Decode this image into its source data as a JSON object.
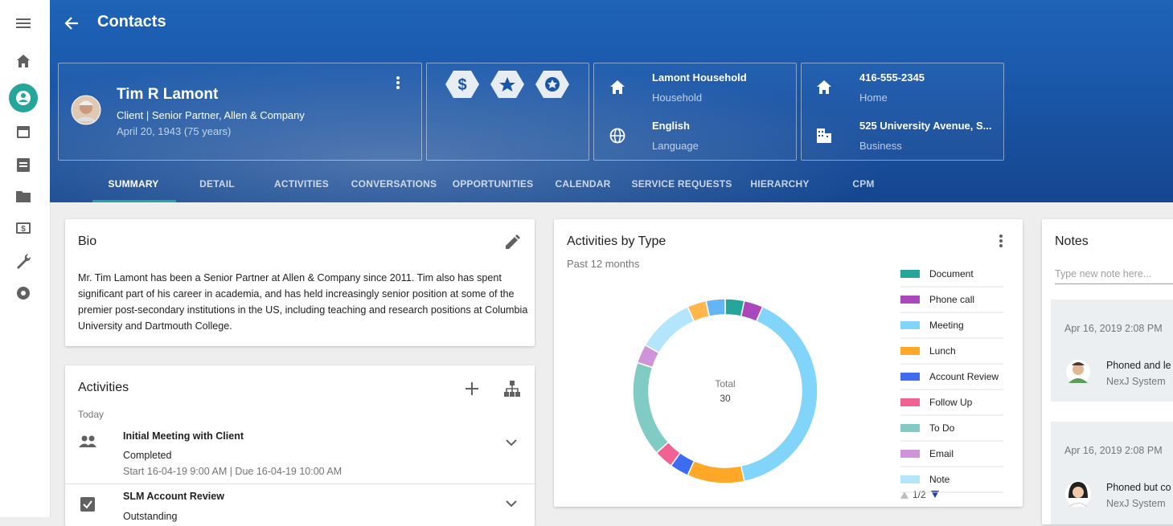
{
  "header": {
    "title": "Contacts"
  },
  "profile": {
    "name": "Tim R Lamont",
    "role": "Client | Senior Partner, Allen & Company",
    "birth": "April 20, 1943 (75 years)"
  },
  "household": {
    "name": "Lamont Household",
    "name_label": "Household",
    "language": "English",
    "language_label": "Language"
  },
  "contact": {
    "phone": "416-555-2345",
    "phone_label": "Home",
    "address": "525 University Avenue, S...",
    "address_label": "Business"
  },
  "tabs": [
    "SUMMARY",
    "DETAIL",
    "ACTIVITIES",
    "CONVERSATIONS",
    "OPPORTUNITIES",
    "CALENDAR",
    "SERVICE REQUESTS",
    "HIERARCHY",
    "CPM"
  ],
  "bio": {
    "title": "Bio",
    "text": "Mr. Tim Lamont has been a Senior Partner at Allen & Company since 2011. Tim also has spent significant part of his career in academia, and has held increasingly senior position at some of the premier post-secondary institutions in the US, including teaching and research positions at Columbia University and Dartmouth College."
  },
  "activities": {
    "title": "Activities",
    "group": "Today",
    "items": [
      {
        "title": "Initial Meeting with Client",
        "status": "Completed",
        "dates": "Start 16-04-19 9:00 AM | Due 16-04-19 10:00 AM"
      },
      {
        "title": "SLM Account Review",
        "status": "Outstanding"
      }
    ]
  },
  "chart_data": {
    "type": "pie",
    "title": "Activities by Type",
    "subtitle": "Past 12 months",
    "center_label": "Total",
    "total": 30,
    "categories": [
      "Document",
      "Phone call",
      "Meeting",
      "Lunch",
      "Account Review",
      "Follow Up",
      "To Do",
      "Email",
      "Note",
      null,
      null
    ],
    "values": [
      1,
      1,
      12,
      3,
      1,
      1,
      5,
      1,
      3,
      1,
      1
    ],
    "colors": [
      "#26a69a",
      "#ab47bc",
      "#81d4fa",
      "#ffa726",
      "#3d6cf0",
      "#f06292",
      "#80cbc4",
      "#ce93d8",
      "#b3e5fc",
      "#ffb74d",
      "#64b5f6"
    ],
    "legend_page": "1/2"
  },
  "notes": {
    "title": "Notes",
    "placeholder": "Type new note here...",
    "items": [
      {
        "date": "Apr 16, 2019 2:08 PM",
        "text": "Phoned and le",
        "author": "NexJ System"
      },
      {
        "date": "Apr 16, 2019 2:08 PM",
        "text": "Phoned but co",
        "author": "NexJ System"
      }
    ]
  }
}
